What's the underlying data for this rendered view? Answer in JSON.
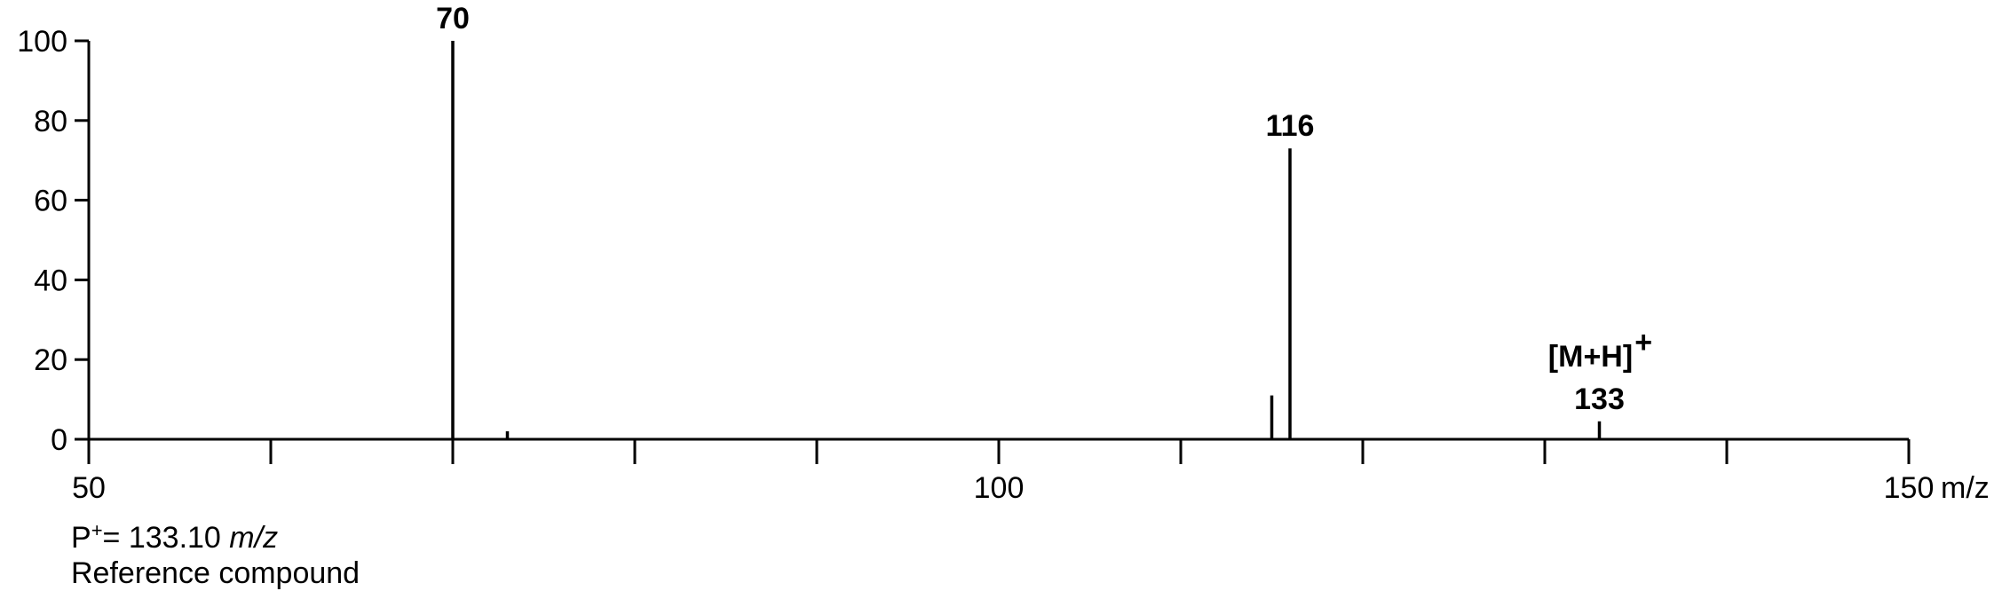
{
  "chart_data": {
    "type": "bar",
    "xlabel": "m/z",
    "x_ticks_labeled": [
      50,
      100,
      150
    ],
    "x_tick_step": 5,
    "xlim": [
      50,
      150
    ],
    "y_ticks": [
      0,
      20,
      40,
      60,
      80,
      100
    ],
    "ylim": [
      0,
      100
    ],
    "grid": false,
    "peaks": [
      {
        "mz": 70,
        "intensity": 100,
        "label": "70"
      },
      {
        "mz": 73,
        "intensity": 2,
        "label": ""
      },
      {
        "mz": 115,
        "intensity": 11,
        "label": ""
      },
      {
        "mz": 116,
        "intensity": 73,
        "label": "116"
      },
      {
        "mz": 133,
        "intensity": 4.5,
        "label": "133",
        "ion_label": "[M+H]",
        "ion_superscript": "+"
      }
    ]
  },
  "caption": {
    "line1_prefix": "P",
    "line1_superscript": "+",
    "line1_value": "= 133.10 ",
    "line1_unit": "m/z",
    "line2": "Reference compound"
  }
}
